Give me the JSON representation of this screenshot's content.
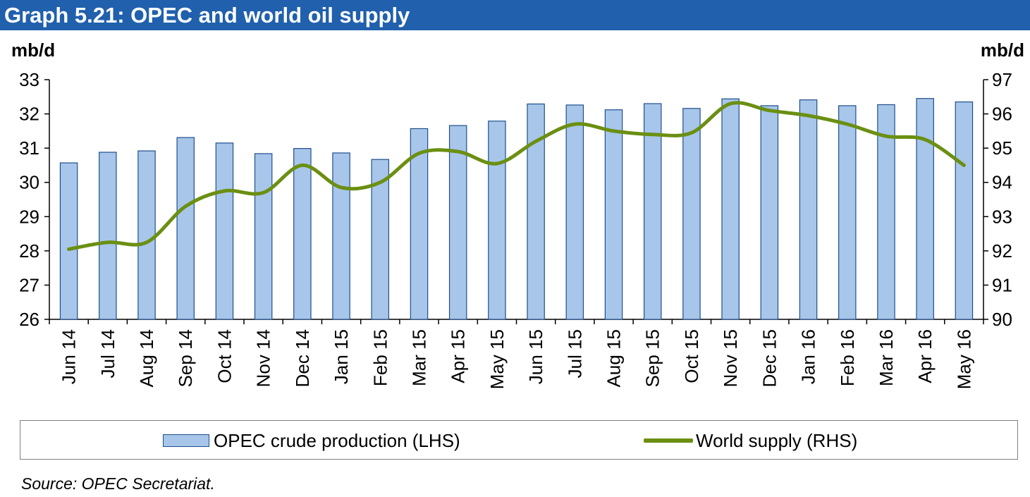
{
  "title": "Graph 5.21: OPEC and world oil supply",
  "source": "Source: OPEC Secretariat.",
  "colors": {
    "header": "#2060ad",
    "bar_fill": "#a8c6ea",
    "bar_stroke": "#1f4e8c",
    "line": "#6b8f12"
  },
  "chart_data": {
    "type": "bar",
    "categories": [
      "Jun 14",
      "Jul 14",
      "Aug 14",
      "Sep 14",
      "Oct 14",
      "Nov 14",
      "Dec 14",
      "Jan 15",
      "Feb 15",
      "Mar 15",
      "Apr 15",
      "May 15",
      "Jun 15",
      "Jul 15",
      "Aug 15",
      "Sep 15",
      "Oct 15",
      "Nov 15",
      "Dec 15",
      "Jan 16",
      "Feb 16",
      "Mar 16",
      "Apr 16",
      "May 16"
    ],
    "series": [
      {
        "name": "OPEC crude production (LHS)",
        "type": "bar",
        "axis": "left",
        "values": [
          30.57,
          30.88,
          30.92,
          31.31,
          31.15,
          30.84,
          30.99,
          30.86,
          30.67,
          31.57,
          31.66,
          31.79,
          32.29,
          32.26,
          32.12,
          32.3,
          32.16,
          32.44,
          32.24,
          32.41,
          32.24,
          32.27,
          32.45,
          32.35
        ]
      },
      {
        "name": "World supply (RHS)",
        "type": "line",
        "axis": "right",
        "values": [
          92.05,
          92.25,
          92.25,
          93.3,
          93.75,
          93.7,
          94.5,
          93.85,
          94.0,
          94.85,
          94.9,
          94.55,
          95.2,
          95.7,
          95.5,
          95.4,
          95.45,
          96.3,
          96.1,
          95.95,
          95.7,
          95.35,
          95.25,
          94.5
        ]
      }
    ],
    "left_axis": {
      "label": "mb/d",
      "ylim": [
        26,
        33
      ],
      "ticks": [
        "26",
        "27",
        "28",
        "29",
        "30",
        "31",
        "32",
        "33"
      ]
    },
    "right_axis": {
      "label": "mb/d",
      "ylim": [
        90,
        97
      ],
      "ticks": [
        "90",
        "91",
        "92",
        "93",
        "94",
        "95",
        "96",
        "97"
      ]
    },
    "legend": [
      "OPEC crude production (LHS)",
      "World supply (RHS)"
    ],
    "legend_position": "bottom",
    "grid": false
  }
}
